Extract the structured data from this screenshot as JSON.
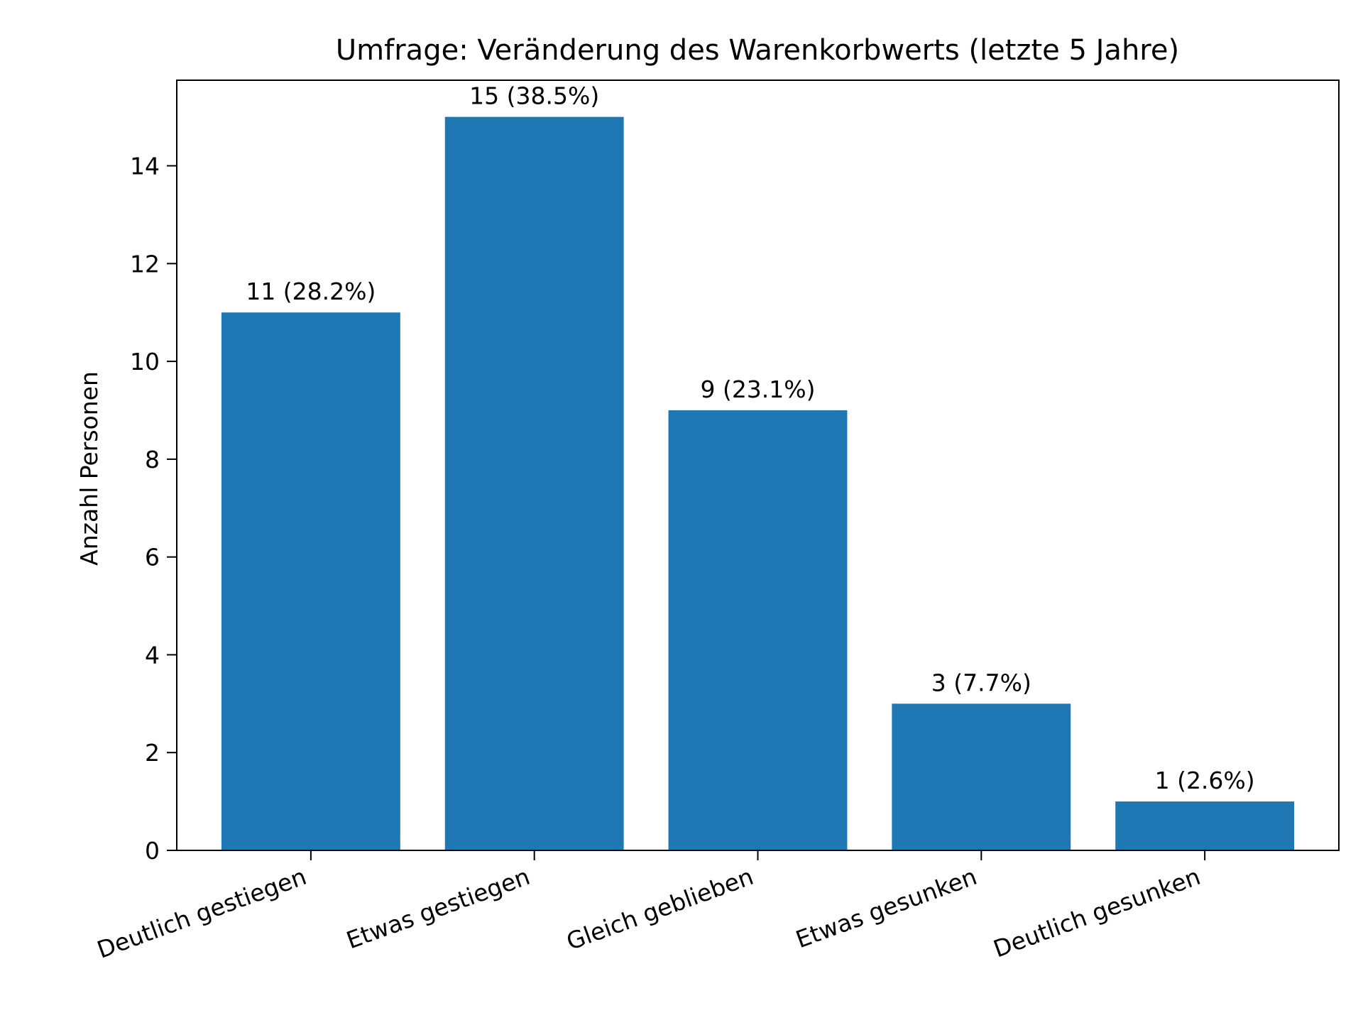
{
  "chart_data": {
    "type": "bar",
    "title": "Umfrage: Veränderung des Warenkorbwerts (letzte 5 Jahre)",
    "xlabel": "",
    "ylabel": "Anzahl Personen",
    "categories": [
      "Deutlich gestiegen",
      "Etwas gestiegen",
      "Gleich geblieben",
      "Etwas gesunken",
      "Deutlich gesunken"
    ],
    "values": [
      11,
      15,
      9,
      3,
      1
    ],
    "value_labels": [
      "11 (28.2%)",
      "15 (38.5%)",
      "9 (23.1%)",
      "3 (7.7%)",
      "1 (2.6%)"
    ],
    "ylim": [
      0,
      15.75
    ],
    "yticks": [
      0,
      2,
      4,
      6,
      8,
      10,
      12,
      14
    ],
    "ytick_labels": [
      "0",
      "2",
      "4",
      "6",
      "8",
      "10",
      "12",
      "14"
    ],
    "grid": false,
    "legend": "none",
    "colors": {
      "bar": "#1f77b4",
      "axis": "#000000",
      "background": "#ffffff"
    }
  }
}
